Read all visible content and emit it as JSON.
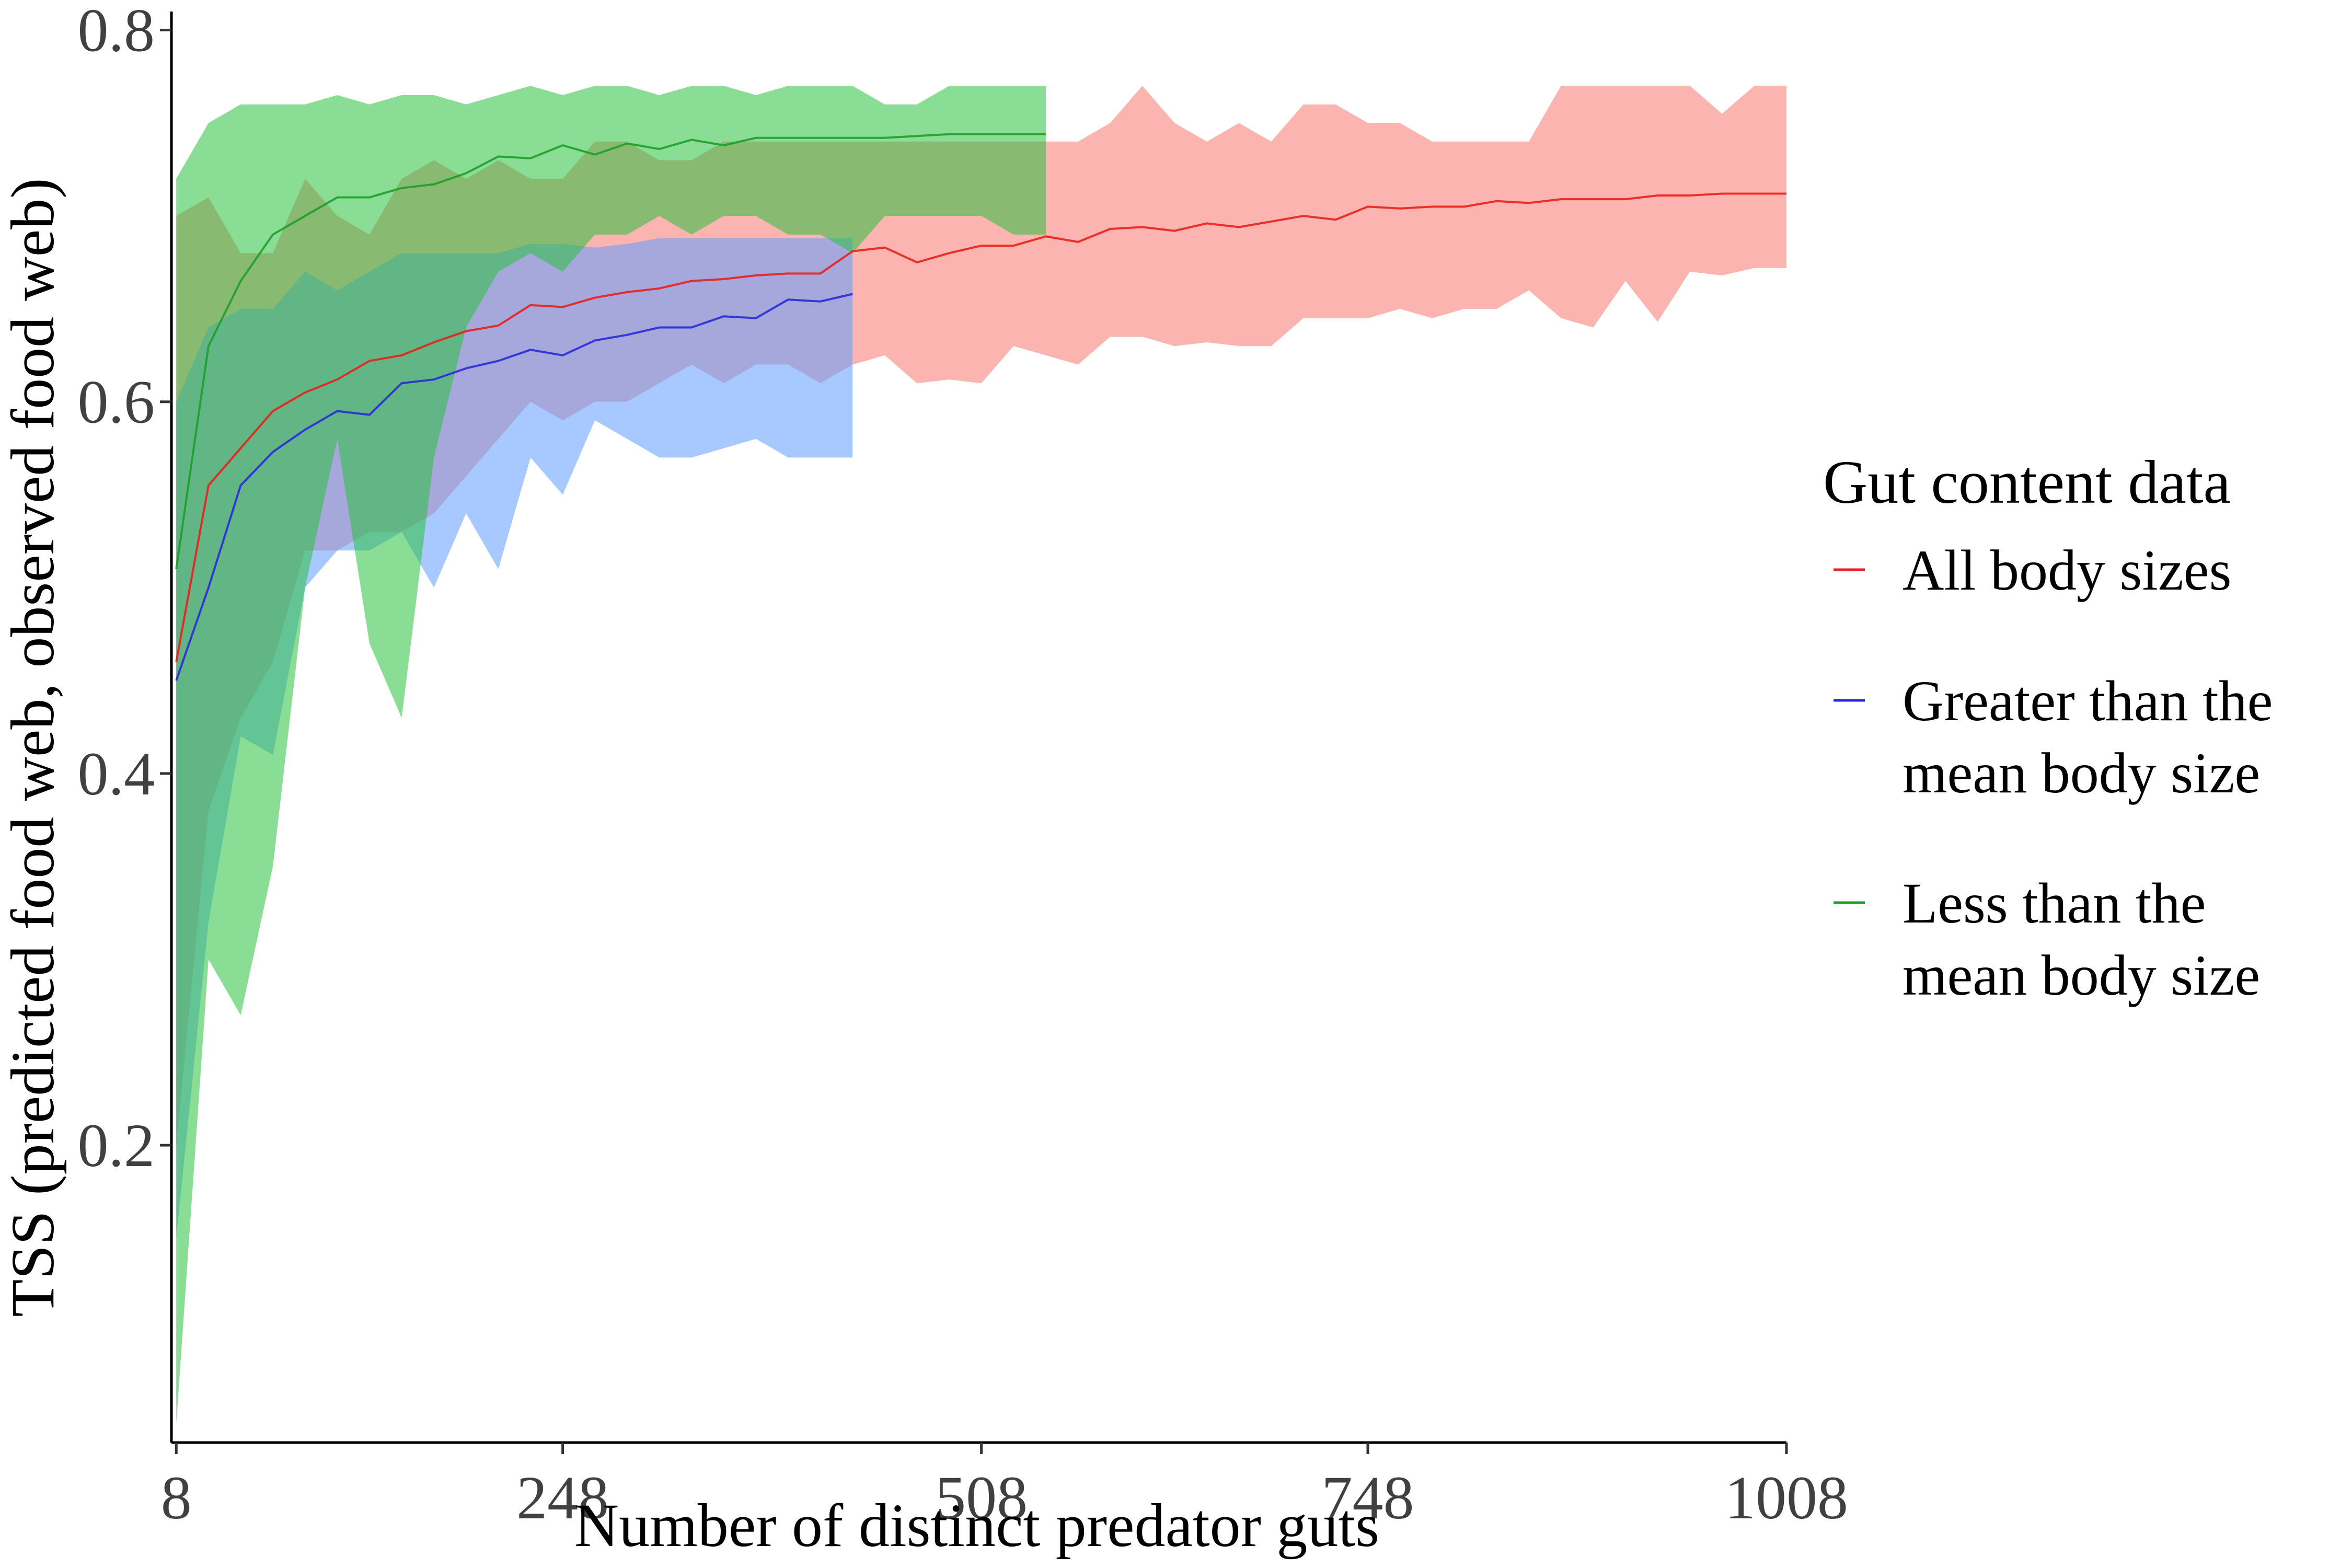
{
  "chart_data": {
    "type": "line",
    "title": "",
    "xlabel": "Number of distinct predator guts",
    "ylabel": "TSS (predicted food web, observed food web)",
    "xlim": [
      5,
      1008
    ],
    "ylim": [
      0.04,
      0.81
    ],
    "x_ticks": [
      8,
      248,
      508,
      748,
      1008
    ],
    "x_tick_labels": [
      "8",
      "248",
      "508",
      "748",
      "1008"
    ],
    "y_ticks": [
      0.2,
      0.4,
      0.6,
      0.8
    ],
    "y_tick_labels": [
      "0.2",
      "0.4",
      "0.6",
      "0.8"
    ],
    "grid": false,
    "band_opacity": 0.55,
    "legend": {
      "title": "Gut content data",
      "position": "right"
    },
    "series": [
      {
        "name": "All body sizes",
        "legend_lines": [
          "All body sizes"
        ],
        "line_color": "#f8766d",
        "line_stroke": "#e8201a",
        "band_color": "#f8766d",
        "x": [
          8,
          28,
          48,
          68,
          88,
          108,
          128,
          148,
          168,
          188,
          208,
          228,
          248,
          268,
          288,
          308,
          328,
          348,
          368,
          388,
          408,
          428,
          448,
          468,
          488,
          508,
          528,
          548,
          568,
          588,
          608,
          628,
          648,
          668,
          688,
          708,
          728,
          748,
          768,
          788,
          808,
          828,
          848,
          868,
          888,
          908,
          928,
          948,
          968,
          988,
          1008
        ],
        "mean": [
          0.46,
          0.555,
          0.575,
          0.595,
          0.605,
          0.612,
          0.622,
          0.625,
          0.632,
          0.638,
          0.641,
          0.652,
          0.651,
          0.656,
          0.659,
          0.661,
          0.665,
          0.666,
          0.668,
          0.669,
          0.669,
          0.681,
          0.683,
          0.675,
          0.68,
          0.684,
          0.684,
          0.689,
          0.686,
          0.693,
          0.694,
          0.692,
          0.696,
          0.694,
          0.697,
          0.7,
          0.698,
          0.705,
          0.704,
          0.705,
          0.705,
          0.708,
          0.707,
          0.709,
          0.709,
          0.709,
          0.711,
          0.711,
          0.712,
          0.712,
          0.712
        ],
        "upper": [
          0.7,
          0.71,
          0.68,
          0.68,
          0.72,
          0.7,
          0.69,
          0.72,
          0.73,
          0.72,
          0.73,
          0.72,
          0.72,
          0.74,
          0.74,
          0.73,
          0.73,
          0.74,
          0.74,
          0.74,
          0.74,
          0.74,
          0.74,
          0.74,
          0.74,
          0.74,
          0.74,
          0.74,
          0.74,
          0.75,
          0.77,
          0.75,
          0.74,
          0.75,
          0.74,
          0.76,
          0.76,
          0.75,
          0.75,
          0.74,
          0.74,
          0.74,
          0.74,
          0.77,
          0.77,
          0.77,
          0.77,
          0.77,
          0.755,
          0.77,
          0.77
        ],
        "lower": [
          0.2,
          0.38,
          0.43,
          0.46,
          0.52,
          0.52,
          0.53,
          0.53,
          0.54,
          0.56,
          0.58,
          0.6,
          0.59,
          0.6,
          0.6,
          0.61,
          0.62,
          0.61,
          0.62,
          0.62,
          0.61,
          0.62,
          0.625,
          0.61,
          0.612,
          0.61,
          0.63,
          0.625,
          0.62,
          0.635,
          0.635,
          0.63,
          0.632,
          0.63,
          0.63,
          0.645,
          0.645,
          0.645,
          0.65,
          0.645,
          0.65,
          0.65,
          0.66,
          0.645,
          0.64,
          0.665,
          0.643,
          0.67,
          0.668,
          0.672,
          0.672
        ]
      },
      {
        "name": "Greater than the mean body size",
        "legend_lines": [
          "Greater than the",
          "mean body size"
        ],
        "line_color": "#619cff",
        "line_stroke": "#2a2ad8",
        "band_color": "#619cff",
        "x": [
          8,
          28,
          48,
          68,
          88,
          108,
          128,
          148,
          168,
          188,
          208,
          228,
          248,
          268,
          288,
          308,
          328,
          348,
          368,
          388,
          408,
          428
        ],
        "mean": [
          0.45,
          0.5,
          0.555,
          0.573,
          0.585,
          0.595,
          0.593,
          0.61,
          0.612,
          0.618,
          0.622,
          0.628,
          0.625,
          0.633,
          0.636,
          0.64,
          0.64,
          0.646,
          0.645,
          0.655,
          0.654,
          0.658
        ],
        "upper": [
          0.6,
          0.64,
          0.65,
          0.65,
          0.67,
          0.66,
          0.67,
          0.68,
          0.68,
          0.68,
          0.68,
          0.685,
          0.685,
          0.683,
          0.685,
          0.688,
          0.688,
          0.688,
          0.688,
          0.688,
          0.688,
          0.688
        ],
        "lower": [
          0.15,
          0.32,
          0.42,
          0.41,
          0.5,
          0.52,
          0.52,
          0.53,
          0.5,
          0.54,
          0.51,
          0.57,
          0.55,
          0.59,
          0.58,
          0.57,
          0.57,
          0.575,
          0.58,
          0.57,
          0.57,
          0.57
        ]
      },
      {
        "name": "Less than the mean body size",
        "legend_lines": [
          "Less than the",
          "mean body size"
        ],
        "line_color": "#00ba38",
        "line_stroke": "#1e9e2a",
        "band_color": "#2ac13e",
        "x": [
          8,
          28,
          48,
          68,
          88,
          108,
          128,
          148,
          168,
          188,
          208,
          228,
          248,
          268,
          288,
          308,
          328,
          348,
          368,
          388,
          408,
          428,
          448,
          468,
          488,
          508,
          528,
          548
        ],
        "mean": [
          0.51,
          0.63,
          0.665,
          0.69,
          0.7,
          0.71,
          0.71,
          0.715,
          0.717,
          0.723,
          0.732,
          0.731,
          0.738,
          0.733,
          0.739,
          0.736,
          0.741,
          0.738,
          0.742,
          0.742,
          0.742,
          0.742,
          0.742,
          0.743,
          0.744,
          0.744,
          0.744,
          0.744
        ],
        "upper": [
          0.72,
          0.75,
          0.76,
          0.76,
          0.76,
          0.765,
          0.76,
          0.765,
          0.765,
          0.76,
          0.765,
          0.77,
          0.765,
          0.77,
          0.77,
          0.765,
          0.77,
          0.77,
          0.765,
          0.77,
          0.77,
          0.77,
          0.76,
          0.76,
          0.77,
          0.77,
          0.77,
          0.77
        ],
        "lower": [
          0.05,
          0.3,
          0.27,
          0.35,
          0.5,
          0.58,
          0.47,
          0.43,
          0.57,
          0.64,
          0.67,
          0.68,
          0.67,
          0.69,
          0.69,
          0.7,
          0.69,
          0.7,
          0.7,
          0.69,
          0.69,
          0.68,
          0.7,
          0.7,
          0.7,
          0.7,
          0.69,
          0.69
        ]
      }
    ]
  }
}
